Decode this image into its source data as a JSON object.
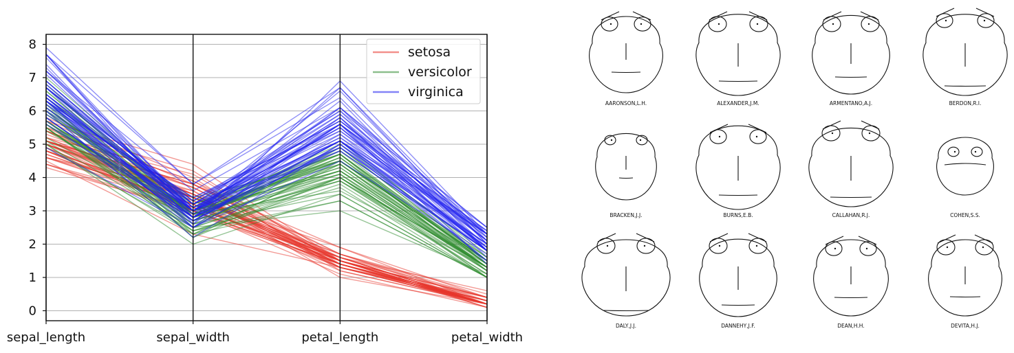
{
  "chart_data": [
    {
      "type": "parallel_coordinates",
      "title": "",
      "axes": [
        "sepal_length",
        "sepal_width",
        "petal_length",
        "petal_width"
      ],
      "ylim": [
        -0.3,
        8.3
      ],
      "yticks": [
        "0",
        "1",
        "2",
        "3",
        "4",
        "5",
        "6",
        "7",
        "8"
      ],
      "grid": true,
      "legend_position": "top-right",
      "series": [
        {
          "name": "setosa",
          "color": "#e8352b",
          "lines": [
            [
              5.1,
              3.5,
              1.4,
              0.2
            ],
            [
              4.9,
              3.0,
              1.4,
              0.2
            ],
            [
              4.7,
              3.2,
              1.3,
              0.2
            ],
            [
              4.6,
              3.1,
              1.5,
              0.2
            ],
            [
              5.0,
              3.6,
              1.4,
              0.2
            ],
            [
              5.4,
              3.9,
              1.7,
              0.4
            ],
            [
              4.6,
              3.4,
              1.4,
              0.3
            ],
            [
              5.0,
              3.4,
              1.5,
              0.2
            ],
            [
              4.4,
              2.9,
              1.4,
              0.2
            ],
            [
              4.9,
              3.1,
              1.5,
              0.1
            ],
            [
              5.4,
              3.7,
              1.5,
              0.2
            ],
            [
              4.8,
              3.4,
              1.6,
              0.2
            ],
            [
              4.8,
              3.0,
              1.4,
              0.1
            ],
            [
              4.3,
              3.0,
              1.1,
              0.1
            ],
            [
              5.8,
              4.0,
              1.2,
              0.2
            ],
            [
              5.7,
              4.4,
              1.5,
              0.4
            ],
            [
              5.4,
              3.9,
              1.3,
              0.4
            ],
            [
              5.1,
              3.5,
              1.4,
              0.3
            ],
            [
              5.7,
              3.8,
              1.7,
              0.3
            ],
            [
              5.1,
              3.8,
              1.5,
              0.3
            ],
            [
              5.4,
              3.4,
              1.7,
              0.2
            ],
            [
              5.1,
              3.7,
              1.5,
              0.4
            ],
            [
              4.6,
              3.6,
              1.0,
              0.2
            ],
            [
              5.1,
              3.3,
              1.7,
              0.5
            ],
            [
              4.8,
              3.4,
              1.9,
              0.2
            ],
            [
              5.0,
              3.0,
              1.6,
              0.2
            ],
            [
              5.0,
              3.4,
              1.6,
              0.4
            ],
            [
              5.2,
              3.5,
              1.5,
              0.2
            ],
            [
              5.2,
              3.4,
              1.4,
              0.2
            ],
            [
              4.7,
              3.2,
              1.6,
              0.2
            ],
            [
              4.8,
              3.1,
              1.6,
              0.2
            ],
            [
              5.4,
              3.4,
              1.5,
              0.4
            ],
            [
              5.2,
              4.1,
              1.5,
              0.1
            ],
            [
              5.5,
              4.2,
              1.4,
              0.2
            ],
            [
              4.9,
              3.1,
              1.5,
              0.2
            ],
            [
              5.0,
              3.2,
              1.2,
              0.2
            ],
            [
              5.5,
              3.5,
              1.3,
              0.2
            ],
            [
              4.4,
              3.0,
              1.3,
              0.2
            ],
            [
              5.1,
              3.4,
              1.5,
              0.2
            ],
            [
              5.0,
              3.5,
              1.3,
              0.3
            ],
            [
              4.5,
              2.3,
              1.3,
              0.3
            ],
            [
              4.4,
              3.2,
              1.3,
              0.2
            ],
            [
              5.0,
              3.5,
              1.6,
              0.6
            ],
            [
              5.1,
              3.8,
              1.9,
              0.4
            ],
            [
              4.8,
              3.0,
              1.4,
              0.3
            ],
            [
              5.1,
              3.8,
              1.6,
              0.2
            ],
            [
              4.6,
              3.2,
              1.4,
              0.2
            ],
            [
              5.3,
              3.7,
              1.5,
              0.2
            ],
            [
              5.0,
              3.3,
              1.4,
              0.2
            ]
          ]
        },
        {
          "name": "versicolor",
          "color": "#2e8b2e",
          "lines": [
            [
              7.0,
              3.2,
              4.7,
              1.4
            ],
            [
              6.4,
              3.2,
              4.5,
              1.5
            ],
            [
              6.9,
              3.1,
              4.9,
              1.5
            ],
            [
              5.5,
              2.3,
              4.0,
              1.3
            ],
            [
              6.5,
              2.8,
              4.6,
              1.5
            ],
            [
              5.7,
              2.8,
              4.5,
              1.3
            ],
            [
              6.3,
              3.3,
              4.7,
              1.6
            ],
            [
              4.9,
              2.4,
              3.3,
              1.0
            ],
            [
              6.6,
              2.9,
              4.6,
              1.3
            ],
            [
              5.2,
              2.7,
              3.9,
              1.4
            ],
            [
              5.0,
              2.0,
              3.5,
              1.0
            ],
            [
              5.9,
              3.0,
              4.2,
              1.5
            ],
            [
              6.0,
              2.2,
              4.0,
              1.0
            ],
            [
              6.1,
              2.9,
              4.7,
              1.4
            ],
            [
              5.6,
              2.9,
              3.6,
              1.3
            ],
            [
              6.7,
              3.1,
              4.4,
              1.4
            ],
            [
              5.6,
              3.0,
              4.5,
              1.5
            ],
            [
              5.8,
              2.7,
              4.1,
              1.0
            ],
            [
              6.2,
              2.2,
              4.5,
              1.5
            ],
            [
              5.6,
              2.5,
              3.9,
              1.1
            ],
            [
              5.9,
              3.2,
              4.8,
              1.8
            ],
            [
              6.1,
              2.8,
              4.0,
              1.3
            ],
            [
              6.3,
              2.5,
              4.9,
              1.5
            ],
            [
              6.1,
              2.8,
              4.7,
              1.2
            ],
            [
              6.4,
              2.9,
              4.3,
              1.3
            ],
            [
              6.6,
              3.0,
              4.4,
              1.4
            ],
            [
              6.8,
              2.8,
              4.8,
              1.4
            ],
            [
              6.7,
              3.0,
              5.0,
              1.7
            ],
            [
              6.0,
              2.9,
              4.5,
              1.5
            ],
            [
              5.7,
              2.6,
              3.5,
              1.0
            ],
            [
              5.5,
              2.4,
              3.8,
              1.1
            ],
            [
              5.5,
              2.4,
              3.7,
              1.0
            ],
            [
              5.8,
              2.7,
              3.9,
              1.2
            ],
            [
              6.0,
              2.7,
              5.1,
              1.6
            ],
            [
              5.4,
              3.0,
              4.5,
              1.5
            ],
            [
              6.0,
              3.4,
              4.5,
              1.6
            ],
            [
              6.7,
              3.1,
              4.7,
              1.5
            ],
            [
              6.3,
              2.3,
              4.4,
              1.3
            ],
            [
              5.6,
              3.0,
              4.1,
              1.3
            ],
            [
              5.5,
              2.5,
              4.0,
              1.3
            ],
            [
              5.5,
              2.6,
              4.4,
              1.2
            ],
            [
              6.1,
              3.0,
              4.6,
              1.4
            ],
            [
              5.8,
              2.6,
              4.0,
              1.2
            ],
            [
              5.0,
              2.3,
              3.3,
              1.0
            ],
            [
              5.6,
              2.7,
              4.2,
              1.3
            ],
            [
              5.7,
              3.0,
              4.2,
              1.2
            ],
            [
              5.7,
              2.9,
              4.2,
              1.3
            ],
            [
              6.2,
              2.9,
              4.3,
              1.3
            ],
            [
              5.1,
              2.5,
              3.0,
              1.1
            ],
            [
              5.7,
              2.8,
              4.1,
              1.3
            ]
          ]
        },
        {
          "name": "virginica",
          "color": "#1f1ff0",
          "lines": [
            [
              6.3,
              3.3,
              6.0,
              2.5
            ],
            [
              5.8,
              2.7,
              5.1,
              1.9
            ],
            [
              7.1,
              3.0,
              5.9,
              2.1
            ],
            [
              6.3,
              2.9,
              5.6,
              1.8
            ],
            [
              6.5,
              3.0,
              5.8,
              2.2
            ],
            [
              7.6,
              3.0,
              6.6,
              2.1
            ],
            [
              4.9,
              2.5,
              4.5,
              1.7
            ],
            [
              7.3,
              2.9,
              6.3,
              1.8
            ],
            [
              6.7,
              2.5,
              5.8,
              1.8
            ],
            [
              7.2,
              3.6,
              6.1,
              2.5
            ],
            [
              6.5,
              3.2,
              5.1,
              2.0
            ],
            [
              6.4,
              2.7,
              5.3,
              1.9
            ],
            [
              6.8,
              3.0,
              5.5,
              2.1
            ],
            [
              5.7,
              2.5,
              5.0,
              2.0
            ],
            [
              5.8,
              2.8,
              5.1,
              2.4
            ],
            [
              6.4,
              3.2,
              5.3,
              2.3
            ],
            [
              6.5,
              3.0,
              5.5,
              1.8
            ],
            [
              7.7,
              3.8,
              6.7,
              2.2
            ],
            [
              7.7,
              2.6,
              6.9,
              2.3
            ],
            [
              6.0,
              2.2,
              5.0,
              1.5
            ],
            [
              6.9,
              3.2,
              5.7,
              2.3
            ],
            [
              5.6,
              2.8,
              4.9,
              2.0
            ],
            [
              7.7,
              2.8,
              6.7,
              2.0
            ],
            [
              6.3,
              2.7,
              4.9,
              1.8
            ],
            [
              6.7,
              3.3,
              5.7,
              2.1
            ],
            [
              7.2,
              3.2,
              6.0,
              1.8
            ],
            [
              6.2,
              2.8,
              4.8,
              1.8
            ],
            [
              6.1,
              3.0,
              4.9,
              1.8
            ],
            [
              6.4,
              2.8,
              5.6,
              2.1
            ],
            [
              7.2,
              3.0,
              5.8,
              1.6
            ],
            [
              7.4,
              2.8,
              6.1,
              1.9
            ],
            [
              7.9,
              3.8,
              6.4,
              2.0
            ],
            [
              6.4,
              2.8,
              5.6,
              2.2
            ],
            [
              6.3,
              2.8,
              5.1,
              1.5
            ],
            [
              6.1,
              2.6,
              5.6,
              1.4
            ],
            [
              7.7,
              3.0,
              6.1,
              2.3
            ],
            [
              6.3,
              3.4,
              5.6,
              2.4
            ],
            [
              6.4,
              3.1,
              5.5,
              1.8
            ],
            [
              6.0,
              3.0,
              4.8,
              1.8
            ],
            [
              6.9,
              3.1,
              5.4,
              2.1
            ],
            [
              6.7,
              3.1,
              5.6,
              2.4
            ],
            [
              6.9,
              3.1,
              5.1,
              2.3
            ],
            [
              5.8,
              2.7,
              5.1,
              1.9
            ],
            [
              6.8,
              3.2,
              5.9,
              2.3
            ],
            [
              6.7,
              3.3,
              5.7,
              2.5
            ],
            [
              6.7,
              3.0,
              5.2,
              2.3
            ],
            [
              6.3,
              2.5,
              5.0,
              1.9
            ],
            [
              6.5,
              3.0,
              5.2,
              2.0
            ],
            [
              6.2,
              3.4,
              5.4,
              2.3
            ],
            [
              5.9,
              3.0,
              5.1,
              1.8
            ]
          ]
        }
      ]
    },
    {
      "type": "chernoff_faces",
      "faces": [
        {
          "name": "AARONSON,L.H."
        },
        {
          "name": "ALEXANDER,J.M."
        },
        {
          "name": "ARMENTANO,A.J."
        },
        {
          "name": "BERDON,R.I."
        },
        {
          "name": "BRACKEN,J.J."
        },
        {
          "name": "BURNS,E.B."
        },
        {
          "name": "CALLAHAN,R.J."
        },
        {
          "name": "COHEN,S.S."
        },
        {
          "name": "DALY,J.J."
        },
        {
          "name": "DANNEHY,J.F."
        },
        {
          "name": "DEAN,H.H."
        },
        {
          "name": "DEVITA,H.J."
        }
      ]
    }
  ]
}
